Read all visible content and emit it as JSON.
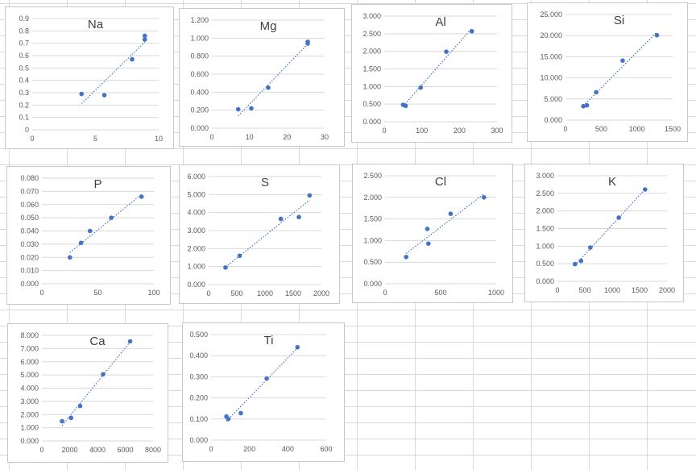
{
  "colors": {
    "point": "#4472c4",
    "trend": "#4472c4",
    "grid": "#d9d9d9",
    "text": "#595959"
  },
  "chart_data": [
    {
      "type": "scatter",
      "title": "Na",
      "decimals": 1,
      "xlim": [
        0,
        10
      ],
      "xticks": [
        0,
        5,
        10
      ],
      "ylim": [
        0,
        0.9
      ],
      "ystep": 0.1,
      "points": [
        [
          3.9,
          0.29
        ],
        [
          5.7,
          0.28
        ],
        [
          7.9,
          0.57
        ],
        [
          8.9,
          0.76
        ],
        [
          8.9,
          0.73
        ]
      ],
      "trendline": true,
      "trend_x": [
        3.9,
        8.9
      ],
      "grid": "horizontal"
    },
    {
      "type": "scatter",
      "title": "Mg",
      "decimals": 3,
      "xlim": [
        0,
        30
      ],
      "xticks": [
        0,
        10,
        20,
        30
      ],
      "ylim": [
        0,
        1.2
      ],
      "ystep": 0.2,
      "points": [
        [
          7,
          0.21
        ],
        [
          10.5,
          0.22
        ],
        [
          15,
          0.45
        ],
        [
          25.5,
          0.96
        ],
        [
          25.5,
          0.94
        ]
      ],
      "trendline": true,
      "trend_x": [
        7,
        25.5
      ],
      "grid": "horizontal"
    },
    {
      "type": "scatter",
      "title": "Al",
      "decimals": 3,
      "xlim": [
        0,
        300
      ],
      "xticks": [
        0,
        100,
        200,
        300
      ],
      "ylim": [
        0,
        3
      ],
      "ystep": 0.5,
      "points": [
        [
          50,
          0.48
        ],
        [
          57,
          0.45
        ],
        [
          97,
          0.97
        ],
        [
          165,
          1.99
        ],
        [
          233,
          2.57
        ]
      ],
      "trendline": true,
      "trend_x": [
        50,
        233
      ],
      "grid": "horizontal"
    },
    {
      "type": "scatter",
      "title": "Si",
      "decimals": 3,
      "xlim": [
        0,
        1500
      ],
      "xticks": [
        0,
        500,
        1000,
        1500
      ],
      "ylim": [
        0,
        25
      ],
      "ystep": 5,
      "points": [
        [
          250,
          3.3
        ],
        [
          300,
          3.5
        ],
        [
          430,
          6.6
        ],
        [
          800,
          14.1
        ],
        [
          1280,
          20.1
        ]
      ],
      "trendline": true,
      "trend_x": [
        250,
        1280
      ],
      "grid": "horizontal"
    },
    {
      "type": "scatter",
      "title": "P",
      "decimals": 3,
      "xlim": [
        0,
        100
      ],
      "xticks": [
        0,
        50,
        100
      ],
      "ylim": [
        0,
        0.08
      ],
      "ystep": 0.01,
      "points": [
        [
          25,
          0.02
        ],
        [
          35,
          0.031
        ],
        [
          43,
          0.04
        ],
        [
          62,
          0.05
        ],
        [
          89,
          0.066
        ]
      ],
      "trendline": true,
      "trend_x": [
        25,
        89
      ],
      "grid": "horizontal"
    },
    {
      "type": "scatter",
      "title": "S",
      "decimals": 3,
      "xlim": [
        0,
        2000
      ],
      "xticks": [
        0,
        500,
        1000,
        1500,
        2000
      ],
      "ylim": [
        0,
        6
      ],
      "ystep": 1,
      "points": [
        [
          300,
          0.95
        ],
        [
          550,
          1.6
        ],
        [
          1280,
          3.65
        ],
        [
          1600,
          3.75
        ],
        [
          1790,
          4.95
        ]
      ],
      "trendline": true,
      "trend_x": [
        300,
        1790
      ],
      "grid": "horizontal"
    },
    {
      "type": "scatter",
      "title": "Cl",
      "decimals": 3,
      "xlim": [
        0,
        1000
      ],
      "xticks": [
        0,
        500,
        1000
      ],
      "ylim": [
        0,
        2.5
      ],
      "ystep": 0.5,
      "points": [
        [
          190,
          0.62
        ],
        [
          380,
          1.27
        ],
        [
          390,
          0.93
        ],
        [
          590,
          1.62
        ],
        [
          890,
          2.0
        ]
      ],
      "trendline": true,
      "trend_x": [
        190,
        890
      ],
      "grid": "horizontal"
    },
    {
      "type": "scatter",
      "title": "K",
      "decimals": 3,
      "xlim": [
        0,
        2000
      ],
      "xticks": [
        0,
        500,
        1000,
        1500,
        2000
      ],
      "ylim": [
        0,
        3
      ],
      "ystep": 0.5,
      "points": [
        [
          320,
          0.49
        ],
        [
          430,
          0.58
        ],
        [
          600,
          0.96
        ],
        [
          1120,
          1.81
        ],
        [
          1600,
          2.61
        ]
      ],
      "trendline": true,
      "trend_x": [
        320,
        1600
      ],
      "grid": "horizontal"
    },
    {
      "type": "scatter",
      "title": "Ca",
      "decimals": 3,
      "xlim": [
        0,
        8000
      ],
      "xticks": [
        0,
        2000,
        4000,
        6000,
        8000
      ],
      "ylim": [
        0,
        8
      ],
      "ystep": 1,
      "points": [
        [
          1450,
          1.5
        ],
        [
          2100,
          1.75
        ],
        [
          2750,
          2.65
        ],
        [
          4400,
          5.05
        ],
        [
          6350,
          7.55
        ]
      ],
      "trendline": true,
      "trend_x": [
        1450,
        6350
      ],
      "grid": "horizontal"
    },
    {
      "type": "scatter",
      "title": "Ti",
      "decimals": 3,
      "xlim": [
        0,
        600
      ],
      "xticks": [
        0,
        200,
        400,
        600
      ],
      "ylim": [
        0,
        0.5
      ],
      "ystep": 0.1,
      "points": [
        [
          80,
          0.112
        ],
        [
          90,
          0.1
        ],
        [
          155,
          0.128
        ],
        [
          290,
          0.292
        ],
        [
          450,
          0.44
        ]
      ],
      "trendline": true,
      "trend_x": [
        80,
        450
      ],
      "grid": "horizontal"
    }
  ]
}
